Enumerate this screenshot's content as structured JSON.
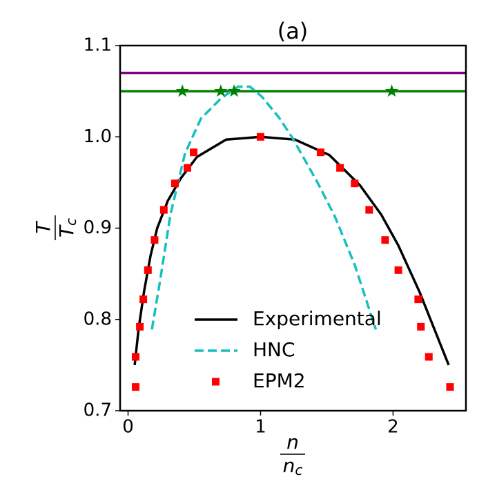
{
  "chart_data": {
    "type": "line",
    "title": "(a)",
    "ylabel": {
      "numerator": "T",
      "denominator": {
        "base": "T",
        "sub": "c"
      }
    },
    "xlabel": {
      "numerator": "n",
      "denominator": {
        "base": "n",
        "sub": "c"
      }
    },
    "xlim": [
      -0.06,
      2.55
    ],
    "ylim": [
      0.7,
      1.1
    ],
    "xticks": [
      0,
      1,
      2
    ],
    "yticks": [
      0.7,
      0.8,
      0.9,
      {
        "value": 1,
        "label": "1.0"
      },
      1.1
    ],
    "series": [
      {
        "name": "Experimental",
        "style": "solid",
        "color": "#000000",
        "x": [
          0.05,
          0.08,
          0.12,
          0.17,
          0.22,
          0.3,
          0.4,
          0.52,
          0.74,
          1.0,
          1.26,
          1.52,
          1.75,
          1.91,
          2.04,
          2.2,
          2.42
        ],
        "values": [
          0.75,
          0.79,
          0.83,
          0.87,
          0.9,
          0.93,
          0.955,
          0.978,
          0.997,
          1.0,
          0.997,
          0.98,
          0.947,
          0.915,
          0.881,
          0.83,
          0.75
        ]
      },
      {
        "name": "HNC",
        "style": "dashed",
        "color": "#17bfbf",
        "x": [
          0.18,
          0.24,
          0.32,
          0.43,
          0.55,
          0.7,
          0.83,
          0.92,
          1.01,
          1.14,
          1.24,
          1.43,
          1.56,
          1.71,
          1.87
        ],
        "values": [
          0.789,
          0.841,
          0.915,
          0.982,
          1.02,
          1.042,
          1.055,
          1.055,
          1.044,
          1.021,
          0.999,
          0.95,
          0.913,
          0.86,
          0.789
        ]
      },
      {
        "name": "EPM2",
        "style": "square",
        "color": "#ff0000",
        "x": [
          0.057,
          0.057,
          0.089,
          0.115,
          0.15,
          0.2,
          0.27,
          0.354,
          0.448,
          0.495,
          1.0,
          1.453,
          1.6,
          1.71,
          1.82,
          1.94,
          2.04,
          2.19,
          2.21,
          2.27,
          2.43
        ],
        "values": [
          0.726,
          0.759,
          0.792,
          0.822,
          0.854,
          0.887,
          0.92,
          0.949,
          0.966,
          0.983,
          1.0,
          0.983,
          0.966,
          0.949,
          0.92,
          0.887,
          0.854,
          0.822,
          0.792,
          0.759,
          0.726
        ]
      }
    ],
    "hlines": [
      {
        "y": 1.07,
        "color": "#800080"
      },
      {
        "y": 1.05,
        "color": "#008000"
      }
    ],
    "stars": {
      "x": [
        0.41,
        0.7,
        0.8,
        1.99
      ],
      "values": [
        1.05,
        1.05,
        1.05,
        1.05
      ],
      "color": "#008000"
    },
    "legend": "lower center"
  }
}
